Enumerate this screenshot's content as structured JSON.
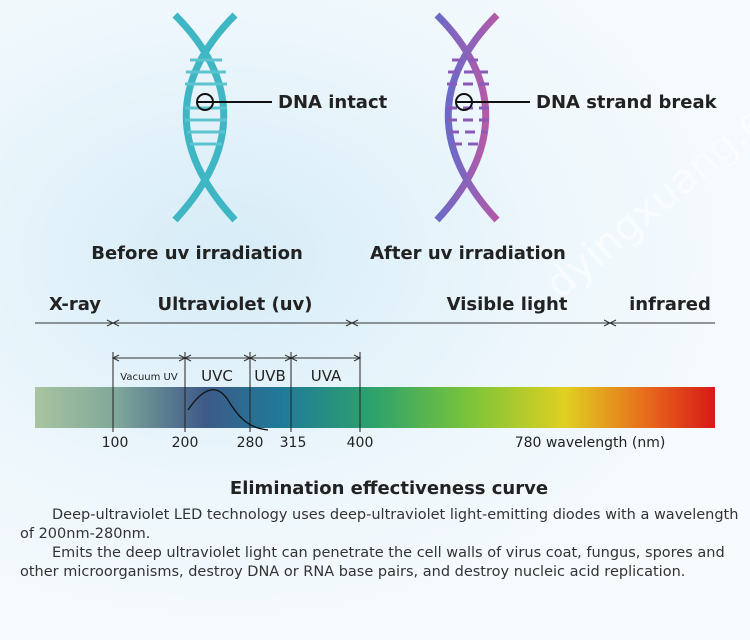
{
  "header": {
    "before": {
      "label": "DNA intact",
      "caption": "Before uv irradiation"
    },
    "after": {
      "label": "DNA strand break",
      "caption": "After uv irradiation"
    }
  },
  "spectrum": {
    "bands": [
      "X-ray",
      "Ultraviolet (uv)",
      "Visible light",
      "infrared"
    ],
    "uv_bands": [
      "Vacuum UV",
      "UVC",
      "UVB",
      "UVA"
    ],
    "ticks": [
      "100",
      "200",
      "280",
      "315",
      "400",
      "780 wavelength (nm)"
    ],
    "title": "Elimination effectiveness curve"
  },
  "body": {
    "paragraphs": [
      "Deep-ultraviolet LED technology uses deep-ultraviolet light-emitting diodes with a wavelength of 200nm-280nm.",
      "Emits the deep ultraviolet light can penetrate the cell walls of virus coat, fungus, spores and other microorganisms, destroy DNA or RNA base pairs, and destroy nucleic acid replication."
    ]
  },
  "watermark": "dyingxuang.en.alibaba.com"
}
